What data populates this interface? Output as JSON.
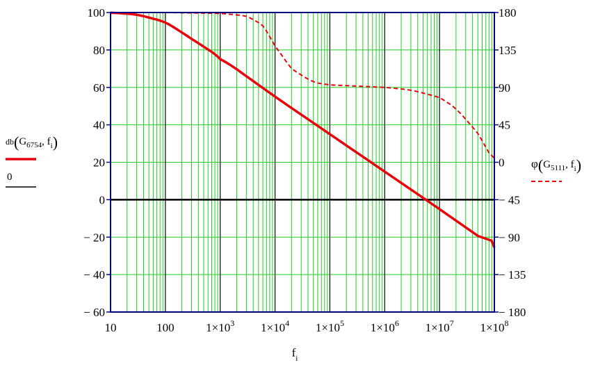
{
  "chart_data": {
    "type": "line",
    "x": {
      "scale": "log",
      "range": [
        10,
        100000000
      ],
      "tick_labels": [
        "10",
        "100",
        "1×10^3",
        "1×10^4",
        "1×10^5",
        "1×10^6",
        "1×10^7",
        "1×10^8"
      ],
      "label": "f_i"
    },
    "y_left": {
      "range": [
        -60,
        100
      ],
      "ticks": [
        100,
        80,
        60,
        40,
        20,
        0,
        -20,
        -40,
        -60
      ],
      "tick_labels": [
        "100",
        "80",
        "60",
        "40",
        "20",
        "0",
        "− 20",
        "− 40",
        "− 60"
      ]
    },
    "y_right": {
      "range": [
        -180,
        180
      ],
      "ticks": [
        180,
        135,
        90,
        45,
        0,
        -45,
        -90,
        -135,
        -180
      ],
      "tick_labels": [
        "180",
        "135",
        "90",
        "45",
        "0",
        "− 45",
        "− 90",
        "− 135",
        "− 180"
      ]
    },
    "grid": true,
    "legend_left": {
      "series1_text": "db(G6754, f_i)",
      "series2_text": "0"
    },
    "legend_right": {
      "series_text": "φ(G5111, f_i)"
    },
    "series": [
      {
        "name": "db(G6754, f_i)",
        "axis": "left",
        "style": "solid",
        "color": "#e8000b",
        "x": [
          10,
          30,
          100,
          300,
          1000,
          10000,
          100000,
          1000000,
          10000000,
          100000000
        ],
        "y": [
          100,
          99,
          95,
          86,
          76,
          55,
          35,
          15,
          -5,
          -25.5
        ]
      },
      {
        "name": "0",
        "axis": "left",
        "style": "solid",
        "color": "#000000",
        "x": [
          10,
          100000000
        ],
        "y": [
          0,
          0
        ]
      },
      {
        "name": "φ(G5111, f_i)",
        "axis": "right",
        "style": "dashed",
        "color": "#e8000b",
        "x": [
          10,
          100,
          1000,
          3000,
          6000,
          10000,
          20000,
          50000,
          100000,
          1000000,
          3000000,
          10000000,
          20000000,
          50000000,
          100000000
        ],
        "y": [
          180,
          180,
          179,
          176,
          165,
          140,
          112,
          96,
          93,
          90,
          87,
          78,
          65,
          35,
          0
        ]
      }
    ]
  },
  "colors": {
    "grid": "#22cc22",
    "decade_line": "#000000",
    "frame": "#000080",
    "curve": "#e8000b"
  }
}
